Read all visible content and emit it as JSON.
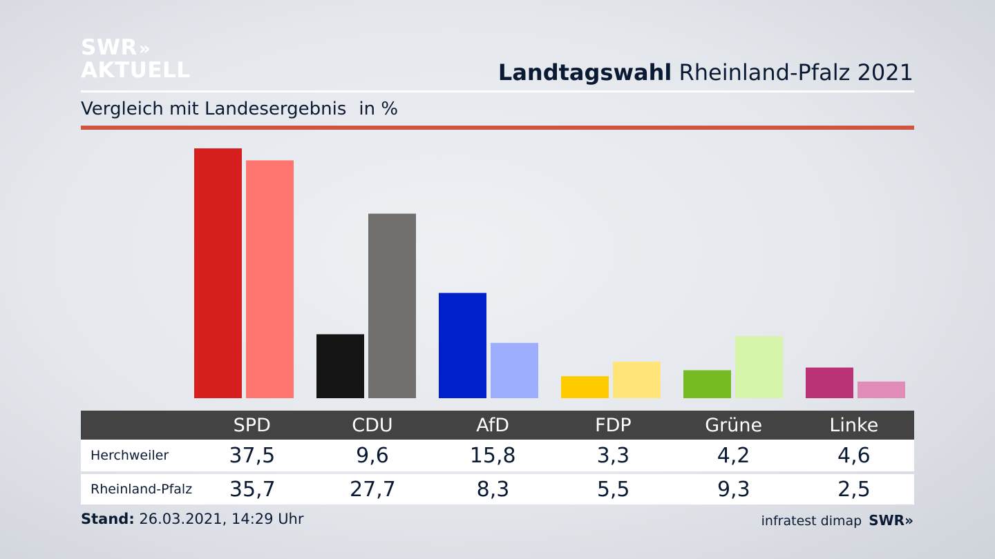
{
  "branding": {
    "logo_line1": "SWR",
    "logo_arrows": "»",
    "logo_line2": "AKTUELL"
  },
  "header": {
    "title_bold": "Landtagswahl",
    "title_rest": "Rheinland-Pfalz 2021",
    "subtitle": "Vergleich mit Landesergebnis",
    "unit": "in %"
  },
  "colors": {
    "rule": "#d0553f",
    "table_header": "#434343"
  },
  "chart_data": {
    "type": "bar",
    "categories": [
      "SPD",
      "CDU",
      "AfD",
      "FDP",
      "Grüne",
      "Linke"
    ],
    "series": [
      {
        "name": "Herchweiler",
        "values": [
          37.5,
          9.6,
          15.8,
          3.3,
          4.2,
          4.6
        ],
        "colors": [
          "#d62020",
          "#141414",
          "#0020cc",
          "#ffcc00",
          "#77bb22",
          "#bb3377"
        ]
      },
      {
        "name": "Rheinland-Pfalz",
        "values": [
          35.7,
          27.7,
          8.3,
          5.5,
          9.3,
          2.5
        ],
        "colors": [
          "#ff7570",
          "#706f6d",
          "#9daeff",
          "#ffe57a",
          "#d6f5aa",
          "#e08bb8"
        ]
      }
    ],
    "ylim": [
      0,
      37.5
    ],
    "grid": false,
    "legend": "table-below"
  },
  "table": {
    "values_display": [
      [
        "37,5",
        "9,6",
        "15,8",
        "3,3",
        "4,2",
        "4,6"
      ],
      [
        "35,7",
        "27,7",
        "8,3",
        "5,5",
        "9,3",
        "2,5"
      ]
    ]
  },
  "footer": {
    "stand_label": "Stand:",
    "stand_value": "26.03.2021, 14:29 Uhr",
    "source": "infratest dimap",
    "source_logo": "SWR»"
  }
}
